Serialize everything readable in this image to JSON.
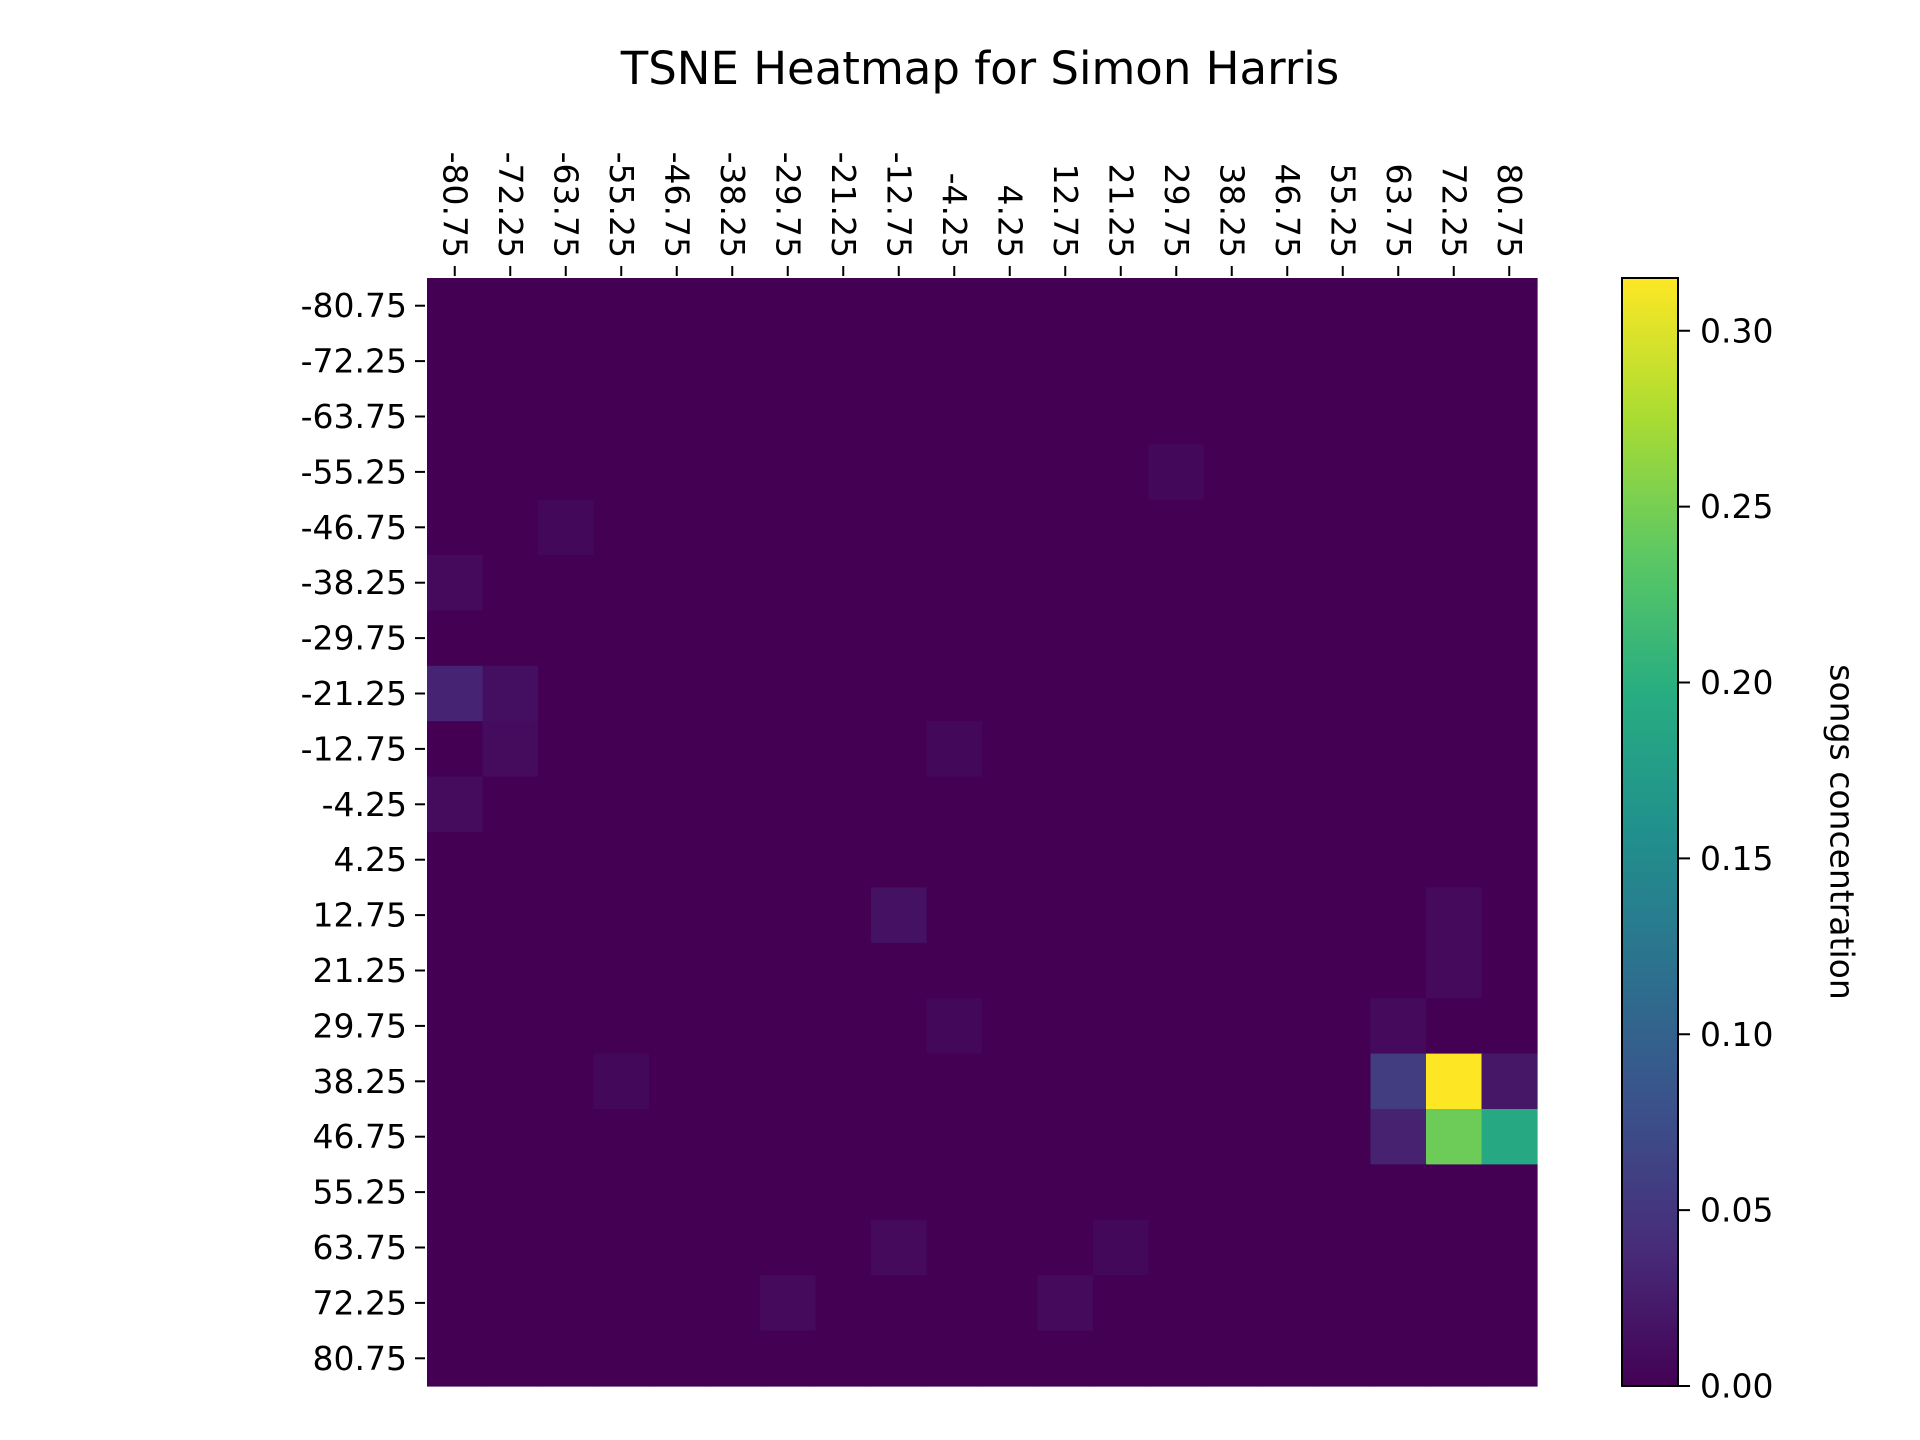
{
  "chart_data": {
    "type": "heatmap",
    "title": "TSNE Heatmap for Simon Harris",
    "x_ticks": [
      "-80.75",
      "-72.25",
      "-63.75",
      "-55.25",
      "-46.75",
      "-38.25",
      "-29.75",
      "-21.25",
      "-12.75",
      "-4.25",
      "4.25",
      "12.75",
      "21.25",
      "29.75",
      "38.25",
      "46.75",
      "55.25",
      "63.75",
      "72.25",
      "80.75"
    ],
    "y_ticks": [
      "-80.75",
      "-72.25",
      "-63.75",
      "-55.25",
      "-46.75",
      "-38.25",
      "-29.75",
      "-21.25",
      "-12.75",
      "-4.25",
      "4.25",
      "12.75",
      "21.25",
      "29.75",
      "38.25",
      "46.75",
      "55.25",
      "63.75",
      "72.25",
      "80.75"
    ],
    "x_axis_position": "top",
    "x_tick_rotation": "vertical",
    "colormap": "viridis",
    "colorbar": {
      "label": "songs concentration",
      "range": [
        0,
        0.315
      ],
      "ticks": [
        "0.00",
        "0.05",
        "0.10",
        "0.15",
        "0.20",
        "0.25",
        "0.30"
      ]
    },
    "values": [
      [
        0,
        0,
        0,
        0,
        0,
        0,
        0,
        0,
        0,
        0,
        0,
        0,
        0,
        0,
        0,
        0,
        0,
        0,
        0,
        0
      ],
      [
        0,
        0,
        0,
        0,
        0,
        0,
        0,
        0,
        0,
        0,
        0,
        0,
        0,
        0,
        0,
        0,
        0,
        0,
        0,
        0
      ],
      [
        0,
        0,
        0,
        0,
        0,
        0,
        0,
        0,
        0,
        0,
        0,
        0,
        0,
        0,
        0,
        0,
        0,
        0,
        0,
        0
      ],
      [
        0,
        0,
        0,
        0,
        0,
        0,
        0,
        0,
        0,
        0,
        0,
        0,
        0,
        0.006,
        0,
        0,
        0,
        0,
        0,
        0
      ],
      [
        0,
        0,
        0.006,
        0,
        0,
        0,
        0,
        0,
        0,
        0,
        0,
        0,
        0,
        0,
        0,
        0,
        0,
        0,
        0,
        0
      ],
      [
        0.008,
        0,
        0,
        0,
        0,
        0,
        0,
        0,
        0,
        0,
        0,
        0,
        0,
        0,
        0,
        0,
        0,
        0,
        0,
        0
      ],
      [
        0,
        0,
        0,
        0,
        0,
        0,
        0,
        0,
        0,
        0,
        0,
        0,
        0,
        0,
        0,
        0,
        0,
        0,
        0,
        0
      ],
      [
        0.032,
        0.013,
        0,
        0,
        0,
        0,
        0,
        0,
        0,
        0,
        0,
        0,
        0,
        0,
        0,
        0,
        0,
        0,
        0,
        0
      ],
      [
        0,
        0.01,
        0,
        0,
        0,
        0,
        0,
        0,
        0,
        0.006,
        0,
        0,
        0,
        0,
        0,
        0,
        0,
        0,
        0,
        0
      ],
      [
        0.01,
        0,
        0,
        0,
        0,
        0,
        0,
        0,
        0,
        0,
        0,
        0,
        0,
        0,
        0,
        0,
        0,
        0,
        0,
        0
      ],
      [
        0,
        0,
        0,
        0,
        0,
        0,
        0,
        0,
        0,
        0,
        0,
        0,
        0,
        0,
        0,
        0,
        0,
        0,
        0,
        0
      ],
      [
        0,
        0,
        0,
        0,
        0,
        0,
        0,
        0,
        0.016,
        0,
        0,
        0,
        0,
        0,
        0,
        0,
        0,
        0,
        0.008,
        0
      ],
      [
        0,
        0,
        0,
        0,
        0,
        0,
        0,
        0,
        0,
        0,
        0,
        0,
        0,
        0,
        0,
        0,
        0,
        0,
        0.008,
        0
      ],
      [
        0,
        0,
        0,
        0,
        0,
        0,
        0,
        0,
        0,
        0.006,
        0,
        0,
        0,
        0,
        0,
        0,
        0,
        0.008,
        0,
        0
      ],
      [
        0,
        0,
        0,
        0.006,
        0,
        0,
        0,
        0,
        0,
        0,
        0,
        0,
        0,
        0,
        0,
        0,
        0,
        0.056,
        0.315,
        0.02
      ],
      [
        0,
        0,
        0,
        0,
        0,
        0,
        0,
        0,
        0,
        0,
        0,
        0,
        0,
        0,
        0,
        0,
        0,
        0.03,
        0.245,
        0.19
      ],
      [
        0,
        0,
        0,
        0,
        0,
        0,
        0,
        0,
        0,
        0,
        0,
        0,
        0,
        0,
        0,
        0,
        0,
        0,
        0,
        0
      ],
      [
        0,
        0,
        0,
        0,
        0,
        0,
        0,
        0,
        0.008,
        0,
        0,
        0,
        0.006,
        0,
        0,
        0,
        0,
        0,
        0,
        0
      ],
      [
        0,
        0,
        0,
        0,
        0,
        0,
        0.008,
        0,
        0,
        0,
        0,
        0.008,
        0,
        0,
        0,
        0,
        0,
        0,
        0,
        0
      ],
      [
        0,
        0,
        0,
        0,
        0,
        0,
        0,
        0,
        0,
        0,
        0,
        0,
        0,
        0,
        0,
        0,
        0,
        0,
        0,
        0
      ]
    ]
  }
}
